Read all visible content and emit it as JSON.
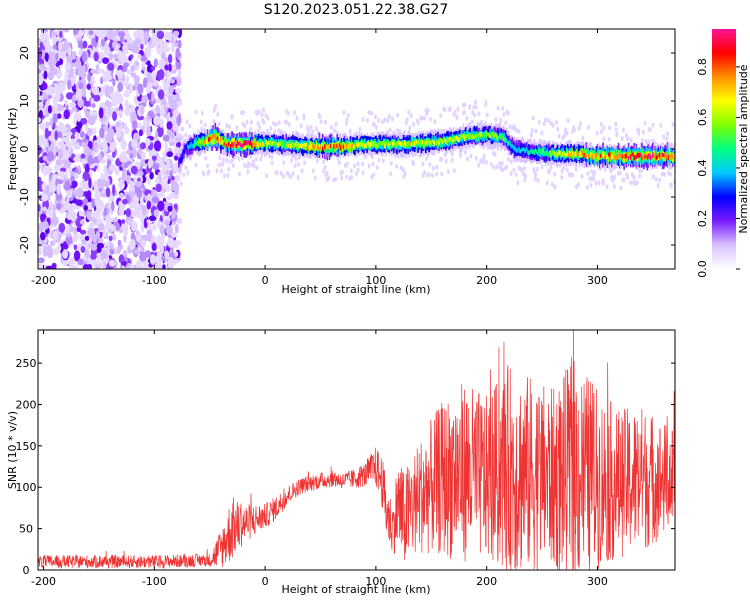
{
  "title": "S120.2023.051.22.38.G27",
  "chart_data": [
    {
      "type": "heatmap",
      "name": "spectrogram",
      "xlabel": "Height of straight line (km)",
      "ylabel": "Frequency (Hz)",
      "xlim": [
        -205,
        370
      ],
      "ylim": [
        -25,
        25
      ],
      "xticks": [
        -200,
        -100,
        0,
        100,
        200,
        300
      ],
      "yticks": [
        -20,
        -10,
        0,
        10,
        20
      ],
      "grid": false,
      "colorbar": {
        "label": "Normalized spectral amplitude",
        "range": [
          0,
          0.95
        ],
        "ticks": [
          0.0,
          0.2,
          0.4,
          0.6,
          0.8
        ],
        "colormap": [
          "#ffffff",
          "#d9c2ff",
          "#7a1cff",
          "#0000ff",
          "#00c8ff",
          "#00ff80",
          "#80ff00",
          "#ffff00",
          "#ff9000",
          "#ff0000",
          "#ff1493"
        ]
      },
      "noise_region": {
        "x_start": -205,
        "x_end": -77,
        "f_min": -25,
        "f_max": 25
      },
      "signal_track": {
        "x": [
          -78,
          -72,
          -65,
          -55,
          -45,
          -35,
          -20,
          0,
          20,
          40,
          60,
          80,
          100,
          120,
          140,
          160,
          180,
          200,
          215,
          225,
          240,
          260,
          280,
          300,
          320,
          340,
          370
        ],
        "f": [
          -3,
          0,
          1,
          1.5,
          2.5,
          1,
          1,
          1.2,
          1,
          0.5,
          0.5,
          0.8,
          1,
          1,
          1.2,
          1.5,
          2.5,
          3,
          2.5,
          0,
          -0.5,
          -1,
          -1,
          -1.5,
          -1.5,
          -1.5,
          -1.5
        ],
        "amplitude": [
          0.25,
          0.3,
          0.45,
          0.7,
          0.85,
          0.75,
          0.9,
          0.6,
          0.55,
          0.7,
          0.8,
          0.7,
          0.6,
          0.6,
          0.65,
          0.6,
          0.6,
          0.55,
          0.5,
          0.4,
          0.45,
          0.55,
          0.7,
          0.75,
          0.8,
          0.85,
          0.8
        ]
      }
    },
    {
      "type": "line",
      "name": "snr",
      "xlabel": "Height of straight line (km)",
      "ylabel": "SNR (10 * v/v)",
      "xlim": [
        -205,
        370
      ],
      "ylim": [
        0,
        290
      ],
      "xticks": [
        -200,
        -100,
        0,
        100,
        200,
        300
      ],
      "yticks": [
        0,
        50,
        100,
        150,
        200,
        250
      ],
      "grid": false,
      "color": "#ee3333",
      "envelope": {
        "x": [
          -205,
          -100,
          -50,
          -40,
          -30,
          -20,
          -10,
          0,
          10,
          20,
          30,
          40,
          50,
          60,
          70,
          80,
          90,
          100,
          105,
          110,
          115,
          120,
          125,
          140,
          160,
          180,
          200,
          220,
          240,
          260,
          280,
          300,
          320,
          340,
          360,
          370
        ],
        "mean": [
          10,
          10,
          12,
          25,
          50,
          55,
          60,
          65,
          75,
          90,
          100,
          105,
          108,
          110,
          108,
          110,
          115,
          125,
          110,
          70,
          50,
          80,
          60,
          90,
          110,
          120,
          110,
          120,
          115,
          110,
          120,
          110,
          105,
          110,
          110,
          110
        ],
        "spread": [
          8,
          8,
          8,
          25,
          40,
          25,
          20,
          15,
          15,
          12,
          10,
          10,
          10,
          10,
          10,
          12,
          15,
          25,
          30,
          40,
          30,
          60,
          60,
          70,
          95,
          110,
          100,
          130,
          120,
          110,
          140,
          110,
          90,
          90,
          70,
          60
        ]
      }
    }
  ]
}
